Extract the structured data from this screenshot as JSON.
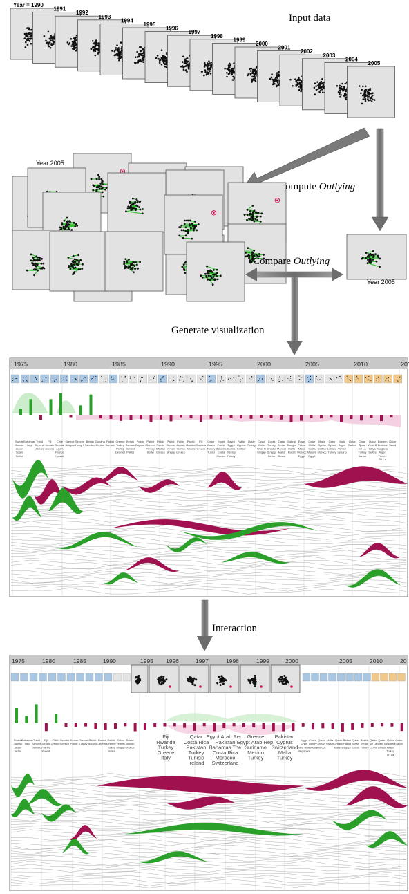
{
  "input_stage": {
    "caption": "Input data",
    "year_labels": [
      "Year = 1990",
      "1991",
      "1992",
      "1993",
      "1994",
      "1995",
      "1996",
      "1997",
      "1998",
      "1999",
      "2000",
      "2001",
      "2002",
      "2003",
      "2004",
      "2005"
    ]
  },
  "compute_stage": {
    "stack_label": "Year 2005",
    "compute_label_prefix": "Compute ",
    "compute_label_italic": "Outlying",
    "compare_label_prefix": "Compare ",
    "compare_label_italic": "Outlying",
    "single_label": "Year 2005"
  },
  "generate_label": "Generate visualization",
  "viz_top": {
    "year_ticks": [
      "1975",
      "1980",
      "1985",
      "1990",
      "1995",
      "2000",
      "2005",
      "2010",
      "201"
    ],
    "name_columns": [
      [
        "Swede",
        "Jamaic",
        "Japan",
        "Spain",
        "Nethe"
      ],
      [
        "Bahamas",
        "Italy"
      ],
      [
        "Trinid",
        "Seyche",
        "Jamaic"
      ],
      [
        "Fiji",
        "Jamaic",
        "Greece"
      ],
      [
        "Chile",
        "Denmar",
        "Agam",
        "France",
        "Kuwait"
      ],
      [
        "Greece",
        "Urugua"
      ],
      [
        "Seyche",
        "Hong K"
      ],
      [
        "Belgiu",
        "Sweden"
      ],
      [
        "Guyana",
        "Bhutan"
      ],
      [
        "Pakist",
        "Jamaic"
      ],
      [
        "Greece",
        "Turkey",
        "Portug",
        "Denmar"
      ],
      [
        "Belgiu",
        "Jamaic",
        "Burund",
        "Pakist"
      ],
      [
        "Pakist",
        "Cayman"
      ],
      [
        "Pakist",
        "Greece",
        "Turkey",
        "Bolivi"
      ],
      [
        "Pakist",
        "Puerto",
        "Bhutan",
        "Greece"
      ],
      [
        "Pakist",
        "Greece",
        "Yemen",
        "Singap"
      ],
      [
        "Pakist",
        "Jamaic",
        "Yemen",
        "Greece"
      ],
      [
        "Pakist",
        "Guatem",
        "Jamaic"
      ],
      [
        "Fiji",
        "Rwanda",
        "Greece"
      ],
      [
        "Qatar",
        "Costa",
        "Turkey",
        "Tunisi"
      ],
      [
        "Egypt",
        "Pakist",
        "Bahama",
        "Costa",
        "Morocc"
      ],
      [
        "Egypt",
        "Egypt",
        "Surina",
        "Mexico",
        "Turkey"
      ],
      [
        "Pakist",
        "Cyprus",
        "Switzer"
      ],
      [
        "Qatar",
        "Turkey"
      ],
      [
        "Costa",
        "Chile",
        "West B",
        "Singap"
      ],
      [
        "Costa",
        "Turkey",
        "Croatia",
        "Singap",
        "Nethe"
      ],
      [
        "Qatar",
        "Syrian",
        "Morocc",
        "Malta",
        "Costa"
      ],
      [
        "Bahrai",
        "Bangla",
        "Malta",
        "Pakist"
      ],
      [
        "Egypt",
        "Pakist",
        "Malta",
        "Morocc",
        "Egypt"
      ],
      [
        "Qatar",
        "Malta",
        "Costa",
        "Malays",
        "Egypt"
      ],
      [
        "Malta",
        "Syrian",
        "Switzer",
        "Morocc"
      ],
      [
        "Qatar",
        "Syrian",
        "Lebano",
        "Turkey"
      ],
      [
        "Malta",
        "Algeri",
        "Yemen",
        "Lebano"
      ],
      [
        "Qatar",
        "Switze"
      ],
      [
        "Qatar",
        "Qatar",
        "Sri La",
        "Turkey",
        "Bahrai"
      ],
      [
        "Qatar",
        "West B",
        "Libya",
        "Switze"
      ],
      [
        "Eastern",
        "Burkina",
        "Bulgaria",
        "Algeri",
        "Turkey",
        "Sri La"
      ],
      [
        "Qatar",
        "Saudi"
      ]
    ]
  },
  "interaction_label": "Interaction",
  "viz_bottom": {
    "year_ticks": [
      "1975",
      "1980",
      "1985",
      "1990",
      "1995",
      "1996",
      "1997",
      "1998",
      "1999",
      "2000",
      "2005",
      "2010",
      "20"
    ],
    "name_columns_left": [
      [
        "Swede",
        "Jamaic",
        "Spain",
        "Nethe"
      ],
      [
        "Bahamas",
        "Italy"
      ],
      [
        "Trinid",
        "Seyche",
        "Jamaic"
      ],
      [
        "Fiji",
        "Jamaic",
        "France",
        "Kuwait"
      ],
      [
        "Chile",
        "Greece"
      ],
      [
        "Seyche",
        "Greece"
      ],
      [
        "Bhutan",
        "Pakist"
      ],
      [
        "Greece",
        "Turkey"
      ],
      [
        "Pakist",
        "Burund"
      ],
      [
        "Pakist",
        "Cayman"
      ],
      [
        "Pakist",
        "Greece",
        "Turkey",
        "Bolivi"
      ],
      [
        "Pakist",
        "Yemen",
        "Singap"
      ],
      [
        "Pakist",
        "Jamaic",
        "Greece"
      ]
    ],
    "expanded_columns": [
      {
        "title": "Fiji",
        "names": [
          "Rwanda",
          "Turkey",
          "Greece",
          "Italy"
        ]
      },
      {
        "title": "Qatar",
        "names": [
          "Costa Rica",
          "Pakistan",
          "Turkey",
          "Tunisia",
          "Ireland"
        ]
      },
      {
        "title": "Egypt Arab Rep.",
        "names": [
          "Pakistan",
          "Bahamas The",
          "Costa Rica",
          "Morocco",
          "Switzerland"
        ]
      },
      {
        "title": "Greece",
        "names": [
          "Egypt Arab Rep.",
          "Suriname",
          "Mexico",
          "Turkey"
        ]
      },
      {
        "title": "Pakistan",
        "names": [
          "Cyprus",
          "Switzerland",
          "Malta",
          "Turkey"
        ]
      }
    ],
    "name_columns_right": [
      [
        "Egypt",
        "Chile",
        "West Bank",
        "Singapore"
      ],
      [
        "Costa",
        "Turkey",
        "Croatia"
      ],
      [
        "Qatar",
        "Syrian",
        "Morocc"
      ],
      [
        "Malta",
        "Switze"
      ],
      [
        "Qatar",
        "Lebano",
        "Malays"
      ],
      [
        "Bahrai",
        "Pakist",
        "Egypt"
      ],
      [
        "Qatar",
        "Malta",
        "Costa"
      ],
      [
        "Malta",
        "Syrian",
        "Turkey"
      ],
      [
        "Qatar",
        "Sri La",
        "Libya"
      ],
      [
        "Qatar",
        "West B",
        "Switze"
      ],
      [
        "Qatar",
        "Bulgaria",
        "Algeri",
        "Turkey",
        "Sri La"
      ],
      [
        "Qatar",
        "Saudi"
      ]
    ]
  }
}
